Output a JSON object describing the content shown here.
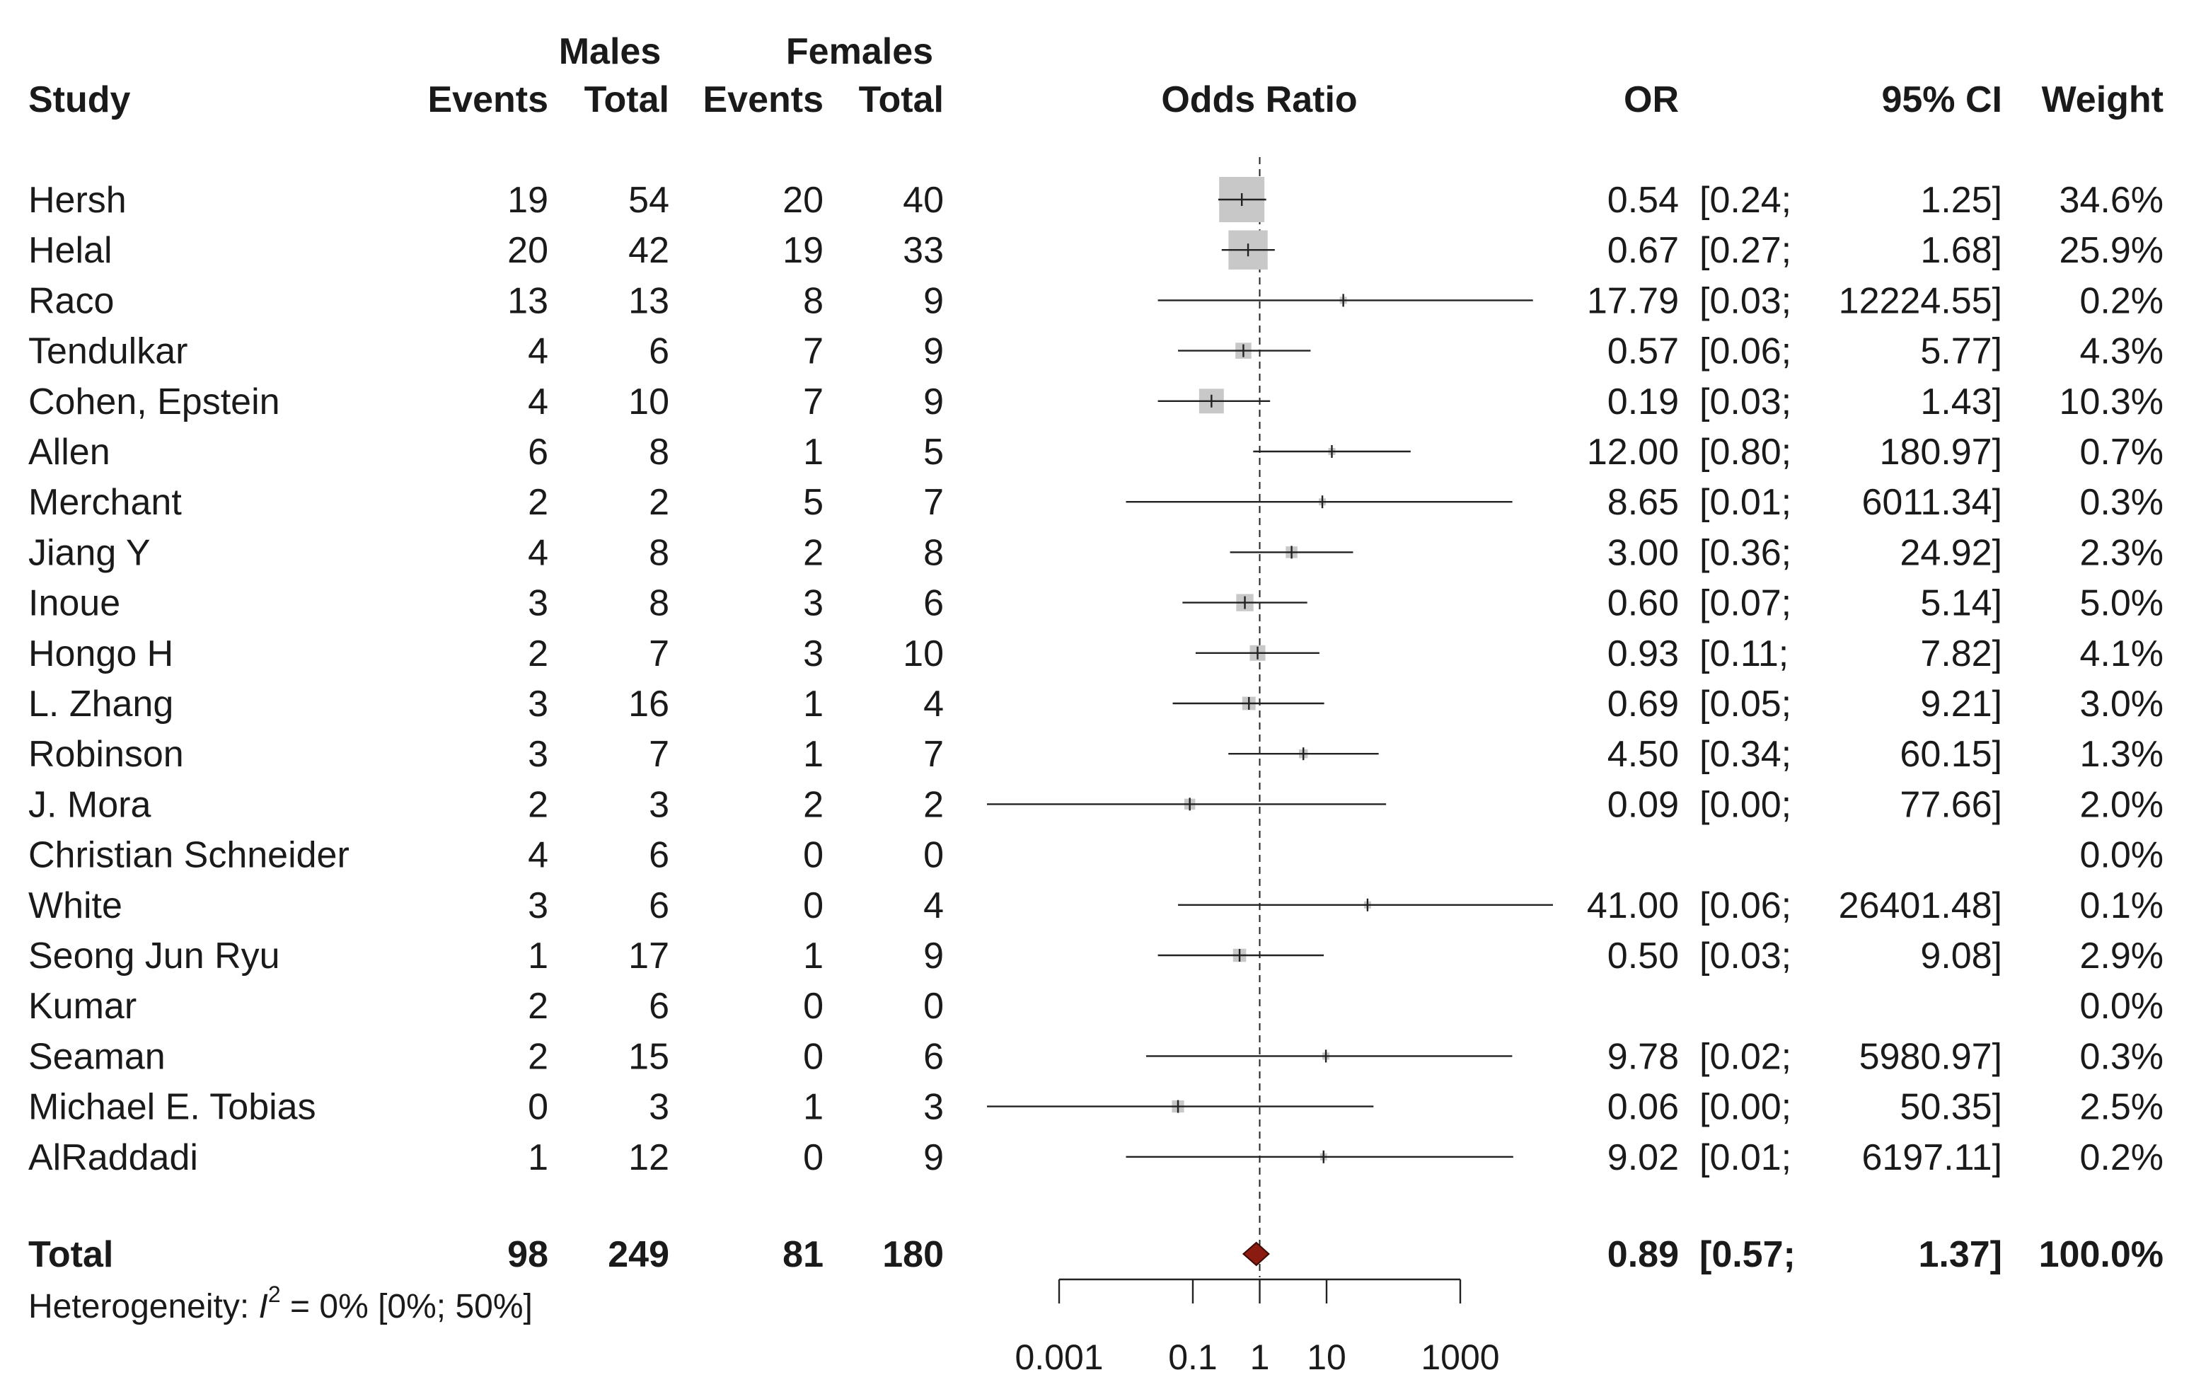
{
  "chart_data": {
    "type": "forest",
    "headers": {
      "group1": "Males",
      "group2": "Females",
      "study": "Study",
      "events": "Events",
      "total": "Total",
      "plot": "Odds Ratio",
      "or": "OR",
      "ci": "95% CI",
      "weight": "Weight"
    },
    "x_scale": "log10",
    "x_range": [
      0.001,
      1000
    ],
    "x_ticks": [
      {
        "value": 0.001,
        "label": "0.001"
      },
      {
        "value": 0.1,
        "label": "0.1"
      },
      {
        "value": 1,
        "label": "1"
      },
      {
        "value": 10,
        "label": "10"
      },
      {
        "value": 1000,
        "label": "1000"
      }
    ],
    "reference_line": 1,
    "studies": [
      {
        "name": "Hersh",
        "m_events": "19",
        "m_total": "54",
        "f_events": "20",
        "f_total": "40",
        "or": 0.54,
        "lo": 0.24,
        "hi": 1.25,
        "or_text": "0.54",
        "ci_lo": "[0.24;",
        "ci_hi": "1.25]",
        "weight_text": "34.6%",
        "weight": 34.6
      },
      {
        "name": "Helal",
        "m_events": "20",
        "m_total": "42",
        "f_events": "19",
        "f_total": "33",
        "or": 0.67,
        "lo": 0.27,
        "hi": 1.68,
        "or_text": "0.67",
        "ci_lo": "[0.27;",
        "ci_hi": "1.68]",
        "weight_text": "25.9%",
        "weight": 25.9
      },
      {
        "name": "Raco",
        "m_events": "13",
        "m_total": "13",
        "f_events": "8",
        "f_total": "9",
        "or": 17.79,
        "lo": 0.03,
        "hi": 12224.55,
        "or_text": "17.79",
        "ci_lo": "[0.03;",
        "ci_hi": "12224.55]",
        "weight_text": "0.2%",
        "weight": 0.2
      },
      {
        "name": "Tendulkar",
        "m_events": "4",
        "m_total": "6",
        "f_events": "7",
        "f_total": "9",
        "or": 0.57,
        "lo": 0.06,
        "hi": 5.77,
        "or_text": "0.57",
        "ci_lo": "[0.06;",
        "ci_hi": "5.77]",
        "weight_text": "4.3%",
        "weight": 4.3
      },
      {
        "name": "Cohen, Epstein",
        "m_events": "4",
        "m_total": "10",
        "f_events": "7",
        "f_total": "9",
        "or": 0.19,
        "lo": 0.03,
        "hi": 1.43,
        "or_text": "0.19",
        "ci_lo": "[0.03;",
        "ci_hi": "1.43]",
        "weight_text": "10.3%",
        "weight": 10.3
      },
      {
        "name": "Allen",
        "m_events": "6",
        "m_total": "8",
        "f_events": "1",
        "f_total": "5",
        "or": 12.0,
        "lo": 0.8,
        "hi": 180.97,
        "or_text": "12.00",
        "ci_lo": "[0.80;",
        "ci_hi": "180.97]",
        "weight_text": "0.7%",
        "weight": 0.7
      },
      {
        "name": "Merchant",
        "m_events": "2",
        "m_total": "2",
        "f_events": "5",
        "f_total": "7",
        "or": 8.65,
        "lo": 0.01,
        "hi": 6011.34,
        "or_text": "8.65",
        "ci_lo": "[0.01;",
        "ci_hi": "6011.34]",
        "weight_text": "0.3%",
        "weight": 0.3
      },
      {
        "name": "Jiang Y",
        "m_events": "4",
        "m_total": "8",
        "f_events": "2",
        "f_total": "8",
        "or": 3.0,
        "lo": 0.36,
        "hi": 24.92,
        "or_text": "3.00",
        "ci_lo": "[0.36;",
        "ci_hi": "24.92]",
        "weight_text": "2.3%",
        "weight": 2.3
      },
      {
        "name": "Inoue",
        "m_events": "3",
        "m_total": "8",
        "f_events": "3",
        "f_total": "6",
        "or": 0.6,
        "lo": 0.07,
        "hi": 5.14,
        "or_text": "0.60",
        "ci_lo": "[0.07;",
        "ci_hi": "5.14]",
        "weight_text": "5.0%",
        "weight": 5.0
      },
      {
        "name": "Hongo H",
        "m_events": "2",
        "m_total": "7",
        "f_events": "3",
        "f_total": "10",
        "or": 0.93,
        "lo": 0.11,
        "hi": 7.82,
        "or_text": "0.93",
        "ci_lo": "[0.11;",
        "ci_hi": "7.82]",
        "weight_text": "4.1%",
        "weight": 4.1
      },
      {
        "name": "L. Zhang",
        "m_events": "3",
        "m_total": "16",
        "f_events": "1",
        "f_total": "4",
        "or": 0.69,
        "lo": 0.05,
        "hi": 9.21,
        "or_text": "0.69",
        "ci_lo": "[0.05;",
        "ci_hi": "9.21]",
        "weight_text": "3.0%",
        "weight": 3.0
      },
      {
        "name": "Robinson",
        "m_events": "3",
        "m_total": "7",
        "f_events": "1",
        "f_total": "7",
        "or": 4.5,
        "lo": 0.34,
        "hi": 60.15,
        "or_text": "4.50",
        "ci_lo": "[0.34;",
        "ci_hi": "60.15]",
        "weight_text": "1.3%",
        "weight": 1.3
      },
      {
        "name": "J. Mora",
        "m_events": "2",
        "m_total": "3",
        "f_events": "2",
        "f_total": "2",
        "or": 0.09,
        "lo": 0.0,
        "hi": 77.66,
        "or_text": "0.09",
        "ci_lo": "[0.00;",
        "ci_hi": "77.66]",
        "weight_text": "2.0%",
        "weight": 2.0
      },
      {
        "name": "Christian Schneider",
        "m_events": "4",
        "m_total": "6",
        "f_events": "0",
        "f_total": "0",
        "or": null,
        "lo": null,
        "hi": null,
        "or_text": "",
        "ci_lo": "",
        "ci_hi": "",
        "weight_text": "0.0%",
        "weight": 0.0
      },
      {
        "name": "White",
        "m_events": "3",
        "m_total": "6",
        "f_events": "0",
        "f_total": "4",
        "or": 41.0,
        "lo": 0.06,
        "hi": 26401.48,
        "or_text": "41.00",
        "ci_lo": "[0.06;",
        "ci_hi": "26401.48]",
        "weight_text": "0.1%",
        "weight": 0.1
      },
      {
        "name": "Seong Jun Ryu",
        "m_events": "1",
        "m_total": "17",
        "f_events": "1",
        "f_total": "9",
        "or": 0.5,
        "lo": 0.03,
        "hi": 9.08,
        "or_text": "0.50",
        "ci_lo": "[0.03;",
        "ci_hi": "9.08]",
        "weight_text": "2.9%",
        "weight": 2.9
      },
      {
        "name": "Kumar",
        "m_events": "2",
        "m_total": "6",
        "f_events": "0",
        "f_total": "0",
        "or": null,
        "lo": null,
        "hi": null,
        "or_text": "",
        "ci_lo": "",
        "ci_hi": "",
        "weight_text": "0.0%",
        "weight": 0.0
      },
      {
        "name": "Seaman",
        "m_events": "2",
        "m_total": "15",
        "f_events": "0",
        "f_total": "6",
        "or": 9.78,
        "lo": 0.02,
        "hi": 5980.97,
        "or_text": "9.78",
        "ci_lo": "[0.02;",
        "ci_hi": "5980.97]",
        "weight_text": "0.3%",
        "weight": 0.3
      },
      {
        "name": "Michael E. Tobias",
        "m_events": "0",
        "m_total": "3",
        "f_events": "1",
        "f_total": "3",
        "or": 0.06,
        "lo": 0.0,
        "hi": 50.35,
        "or_text": "0.06",
        "ci_lo": "[0.00;",
        "ci_hi": "50.35]",
        "weight_text": "2.5%",
        "weight": 2.5
      },
      {
        "name": "AlRaddadi",
        "m_events": "1",
        "m_total": "12",
        "f_events": "0",
        "f_total": "9",
        "or": 9.02,
        "lo": 0.01,
        "hi": 6197.11,
        "or_text": "9.02",
        "ci_lo": "[0.01;",
        "ci_hi": "6197.11]",
        "weight_text": "0.2%",
        "weight": 0.2
      }
    ],
    "total": {
      "name": "Total",
      "m_events": "98",
      "m_total": "249",
      "f_events": "81",
      "f_total": "180",
      "or": 0.89,
      "lo": 0.57,
      "hi": 1.37,
      "or_text": "0.89",
      "ci_lo": "[0.57;",
      "ci_hi": "1.37]",
      "weight_text": "100.0%"
    },
    "heterogeneity": {
      "prefix": "Heterogeneity: ",
      "symbol": "I",
      "exponent": "2",
      "rest": " = 0% [0%; 50%]"
    },
    "colors": {
      "text": "#1a1a1a",
      "weight_box": "#c8c8c8",
      "line": "#222222",
      "diamond_fill": "#8b1a10",
      "diamond_stroke": "#3a0a05"
    }
  }
}
